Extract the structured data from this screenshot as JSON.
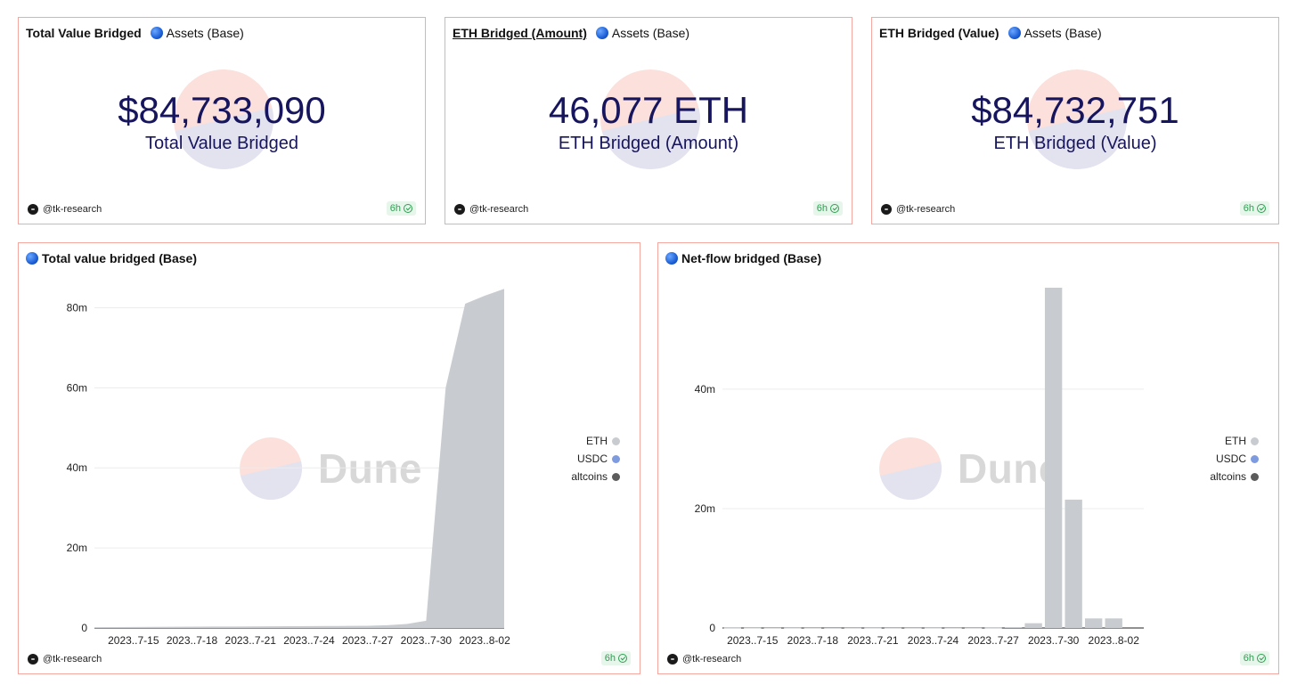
{
  "counters": [
    {
      "title": "Total Value Bridged",
      "title_underlined": false,
      "tag": "Assets (Base)",
      "value": "$84,733,090",
      "label": "Total Value Bridged",
      "author": "@tk-research",
      "freshness": "6h"
    },
    {
      "title": "ETH Bridged (Amount)",
      "title_underlined": true,
      "tag": "Assets (Base)",
      "value": "46,077 ETH",
      "label": "ETH Bridged (Amount)",
      "author": "@tk-research",
      "freshness": "6h"
    },
    {
      "title": "ETH Bridged (Value)",
      "title_underlined": false,
      "tag": "Assets (Base)",
      "value": "$84,732,751",
      "label": "ETH Bridged (Value)",
      "author": "@tk-research",
      "freshness": "6h"
    }
  ],
  "watermark": {
    "text": "Dune",
    "colors": {
      "top": "#fbe0dc",
      "bottom": "#e3e3ef"
    }
  },
  "colors": {
    "ETH": "#c8ccd0",
    "USDC": "#7f9be0",
    "altcoins": "#5c5c5c",
    "border": "#f4a8a0",
    "counter_text": "#17155e"
  },
  "charts": [
    {
      "title": "Total value bridged (Base)",
      "author": "@tk-research",
      "freshness": "6h",
      "legend": [
        "ETH",
        "USDC",
        "altcoins"
      ]
    },
    {
      "title": "Net-flow bridged (Base)",
      "author": "@tk-research",
      "freshness": "6h",
      "legend": [
        "ETH",
        "USDC",
        "altcoins"
      ]
    }
  ],
  "chart_data": [
    {
      "type": "area",
      "title": "Total value bridged (Base)",
      "xlabel": "",
      "ylabel": "",
      "x_ticks": [
        "2023..7-15",
        "2023..7-18",
        "2023..7-21",
        "2023..7-24",
        "2023..7-27",
        "2023..7-30",
        "2023..8-02"
      ],
      "y_ticks": [
        "0",
        "20m",
        "40m",
        "60m",
        "80m"
      ],
      "y_tick_values": [
        0,
        20000000,
        40000000,
        60000000,
        80000000
      ],
      "ylim": [
        0,
        85000000
      ],
      "x": [
        "2023-07-13",
        "2023-07-14",
        "2023-07-15",
        "2023-07-16",
        "2023-07-17",
        "2023-07-18",
        "2023-07-19",
        "2023-07-20",
        "2023-07-21",
        "2023-07-22",
        "2023-07-23",
        "2023-07-24",
        "2023-07-25",
        "2023-07-26",
        "2023-07-27",
        "2023-07-28",
        "2023-07-29",
        "2023-07-30",
        "2023-07-31",
        "2023-08-01",
        "2023-08-02",
        "2023-08-03"
      ],
      "series": [
        {
          "name": "ETH",
          "values": [
            200000,
            220000,
            250000,
            280000,
            300000,
            330000,
            350000,
            370000,
            400000,
            420000,
            450000,
            470000,
            500000,
            520000,
            550000,
            700000,
            1000000,
            1800000,
            60000000,
            81000000,
            83000000,
            84733090
          ]
        }
      ],
      "legend_position": "right",
      "grid": true
    },
    {
      "type": "bar",
      "title": "Net-flow bridged (Base)",
      "xlabel": "",
      "ylabel": "",
      "x_ticks": [
        "2023..7-15",
        "2023..7-18",
        "2023..7-21",
        "2023..7-24",
        "2023..7-27",
        "2023..7-30",
        "2023..8-02"
      ],
      "y_ticks": [
        "0",
        "20m",
        "40m"
      ],
      "y_tick_values": [
        0,
        20000000,
        40000000
      ],
      "ylim": [
        0,
        57000000
      ],
      "x": [
        "2023-07-14",
        "2023-07-15",
        "2023-07-16",
        "2023-07-17",
        "2023-07-18",
        "2023-07-19",
        "2023-07-20",
        "2023-07-21",
        "2023-07-22",
        "2023-07-23",
        "2023-07-24",
        "2023-07-25",
        "2023-07-26",
        "2023-07-27",
        "2023-07-28",
        "2023-07-29",
        "2023-07-30",
        "2023-07-31",
        "2023-08-01",
        "2023-08-02"
      ],
      "series": [
        {
          "name": "ETH",
          "values": [
            50000,
            40000,
            30000,
            40000,
            30000,
            20000,
            30000,
            40000,
            30000,
            30000,
            40000,
            30000,
            30000,
            50000,
            150000,
            800000,
            57000000,
            21500000,
            1600000,
            1600000
          ]
        }
      ],
      "legend_position": "right",
      "grid": true
    }
  ]
}
